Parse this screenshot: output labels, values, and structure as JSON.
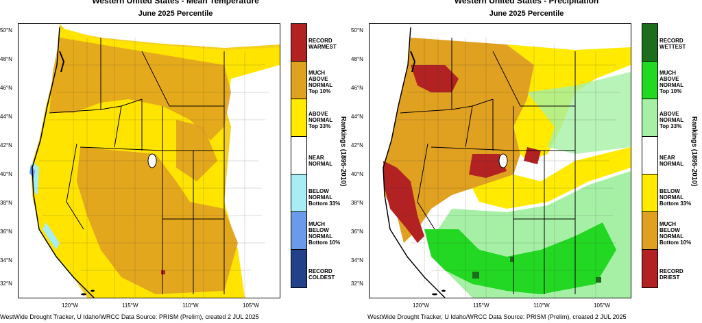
{
  "left": {
    "title": "Western United States - Mean Temperature",
    "subtitle": "June 2025 Percentile",
    "lat_labels": [
      "50°N",
      "48°N",
      "46°N",
      "44°N",
      "42°N",
      "40°N",
      "38°N",
      "36°N",
      "34°N",
      "32°N"
    ],
    "lon_labels": [
      "120°W",
      "115°W",
      "110°W",
      "105°W"
    ],
    "legend": [
      {
        "label": "RECORD\nWARMEST",
        "color": "#b22222"
      },
      {
        "label": "MUCH\nABOVE\nNORMAL\nTop 10%",
        "color": "#e0a020"
      },
      {
        "label": "ABOVE\nNORMAL\nTop 33%",
        "color": "#ffea00"
      },
      {
        "label": "NEAR\nNORMAL",
        "color": "#ffffff"
      },
      {
        "label": "BELOW\nNORMAL\nBottom 33%",
        "color": "#a8ecf4"
      },
      {
        "label": "MUCH\nBELOW\nNORMAL\nBottom 10%",
        "color": "#6a9ae8"
      },
      {
        "label": "RECORD\nCOLDEST",
        "color": "#23418a"
      }
    ],
    "rank_label": "Rankings (1895-2010)",
    "credit": "WestWide Drought Tracker, U Idaho/WRCC Data Source: PRISM (Prelim), created  2 JUL 2025"
  },
  "right": {
    "title": "Western United States - Precipitation",
    "subtitle": "June 2025 Percentile",
    "lat_labels": [
      "50°N",
      "48°N",
      "46°N",
      "44°N",
      "42°N",
      "40°N",
      "38°N",
      "36°N",
      "34°N",
      "32°N"
    ],
    "lon_labels": [
      "120°W",
      "115°W",
      "110°W",
      "105°W"
    ],
    "legend": [
      {
        "label": "RECORD\nWETTEST",
        "color": "#1c6e1c"
      },
      {
        "label": "MUCH\nABOVE\nNORMAL\nTop 10%",
        "color": "#22d822"
      },
      {
        "label": "ABOVE\nNORMAL\nTop 33%",
        "color": "#a6f0a6"
      },
      {
        "label": "NEAR\nNORMAL",
        "color": "#ffffff"
      },
      {
        "label": "BELOW\nNORMAL\nBottom 33%",
        "color": "#ffea00"
      },
      {
        "label": "MUCH\nBELOW\nNORMAL\nBottom 10%",
        "color": "#e0a020"
      },
      {
        "label": "RECORD\nDRIEST",
        "color": "#b22222"
      }
    ],
    "rank_label": "Rankings (1895-2010)",
    "credit": "WestWide Drought Tracker, U Idaho/WRCC Data Source: PRISM (Prelim), created  2 JUL 2025"
  }
}
